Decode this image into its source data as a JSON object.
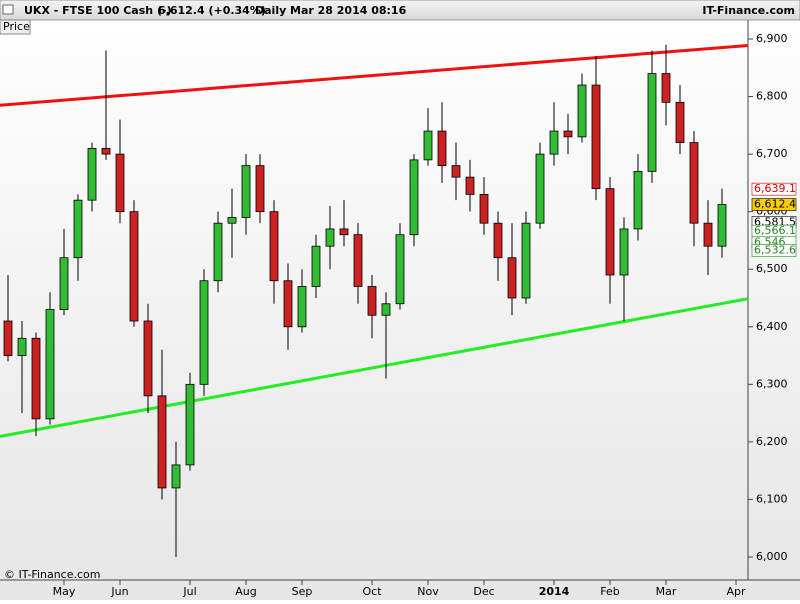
{
  "chart_data": {
    "type": "candlestick",
    "title": "UKX - FTSE 100 Cash (-)",
    "subtitle": "6,612.4 (+0.34%)",
    "period": "Daily",
    "timestamp": "Mar 28 2014 08:16",
    "brand": "IT-Finance.com",
    "panel_label": "Price",
    "copyright": "© IT-Finance.com",
    "categories": [
      null,
      null,
      null,
      null,
      "May",
      null,
      null,
      null,
      "Jun",
      null,
      null,
      null,
      null,
      "Jul",
      null,
      null,
      null,
      "Aug",
      null,
      null,
      null,
      "Sep",
      null,
      null,
      null,
      null,
      "Oct",
      null,
      null,
      null,
      "Nov",
      null,
      null,
      null,
      "Dec",
      null,
      null,
      null,
      null,
      "2014",
      null,
      null,
      null,
      "Feb",
      null,
      null,
      null,
      "Mar",
      null,
      null,
      null,
      null,
      "Apr"
    ],
    "open": [
      6410,
      6350,
      6380,
      6240,
      6430,
      6520,
      6620,
      6710,
      6700,
      6600,
      6410,
      6280,
      6120,
      6160,
      6300,
      6480,
      6580,
      6590,
      6680,
      6600,
      6480,
      6400,
      6470,
      6540,
      6570,
      6560,
      6470,
      6420,
      6440,
      6560,
      6690,
      6740,
      6680,
      6660,
      6630,
      6580,
      6520,
      6450,
      6580,
      6700,
      6740,
      6730,
      6820,
      6640,
      6490,
      6570,
      6670,
      6840,
      6790,
      6720,
      6580,
      6540,
      null
    ],
    "high": [
      6490,
      6410,
      6390,
      6460,
      6570,
      6630,
      6720,
      6880,
      6760,
      6620,
      6440,
      6360,
      6200,
      6320,
      6500,
      6600,
      6640,
      6700,
      6700,
      6620,
      6510,
      6500,
      6560,
      6610,
      6620,
      6580,
      6490,
      6460,
      6580,
      6700,
      6780,
      6790,
      6720,
      6690,
      6660,
      6600,
      6580,
      6600,
      6720,
      6790,
      6770,
      6840,
      6870,
      6660,
      6590,
      6700,
      6880,
      6890,
      6820,
      6740,
      6620,
      6640,
      null
    ],
    "low": [
      6340,
      6250,
      6210,
      6230,
      6420,
      6480,
      6600,
      6690,
      6580,
      6400,
      6250,
      6100,
      6000,
      6150,
      6280,
      6460,
      6520,
      6560,
      6580,
      6440,
      6360,
      6390,
      6450,
      6500,
      6540,
      6440,
      6380,
      6310,
      6430,
      6540,
      6680,
      6650,
      6620,
      6600,
      6560,
      6480,
      6420,
      6440,
      6570,
      6680,
      6700,
      6720,
      6620,
      6440,
      6410,
      6550,
      6650,
      6750,
      6700,
      6540,
      6490,
      6520,
      null
    ],
    "close": [
      6350,
      6380,
      6240,
      6430,
      6520,
      6620,
      6710,
      6700,
      6600,
      6410,
      6280,
      6120,
      6160,
      6300,
      6480,
      6580,
      6590,
      6680,
      6600,
      6480,
      6400,
      6470,
      6540,
      6570,
      6560,
      6470,
      6420,
      6440,
      6560,
      6690,
      6740,
      6680,
      6660,
      6630,
      6580,
      6520,
      6450,
      6580,
      6700,
      6740,
      6730,
      6820,
      6640,
      6490,
      6570,
      6670,
      6840,
      6790,
      6720,
      6580,
      6540,
      6612.4,
      null
    ],
    "up_color": "#33bb33",
    "down_color": "#cc2222",
    "trend_lines": [
      {
        "color": "#ee1111",
        "values": [
          6786,
          6887
        ]
      },
      {
        "color": "#22ee22",
        "values": [
          6212,
          6445
        ]
      }
    ],
    "price_labels": [
      {
        "value": 6639.1,
        "label": "6,639.1",
        "color": "#dd0000"
      },
      {
        "value": 6612.4,
        "label": "6,612.4",
        "color": "#000000"
      },
      {
        "value": 6581.5,
        "label": "6,581.5",
        "color": "#000000"
      },
      {
        "value": 6566.1,
        "label": "6,566.1",
        "color": "#228822"
      },
      {
        "value": 6546,
        "label": "6,546",
        "color": "#228822"
      },
      {
        "value": 6532.6,
        "label": "6,532.6",
        "color": "#228822"
      }
    ],
    "ylim": [
      6000,
      6900
    ],
    "yticks": [
      {
        "value": 6000,
        "label": "6,000"
      },
      {
        "value": 6100,
        "label": "6,100"
      },
      {
        "value": 6200,
        "label": "6,200"
      },
      {
        "value": 6300,
        "label": "6,300"
      },
      {
        "value": 6400,
        "label": "6,400"
      },
      {
        "value": 6500,
        "label": "6,500"
      },
      {
        "value": 6600,
        "label": "6,600"
      },
      {
        "value": 6700,
        "label": "6,700"
      },
      {
        "value": 6800,
        "label": "6,800"
      },
      {
        "value": 6900,
        "label": "6,900"
      }
    ]
  }
}
